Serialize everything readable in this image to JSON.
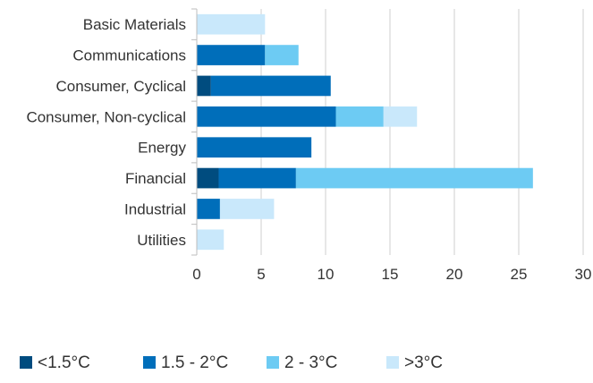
{
  "chart_data": {
    "type": "bar",
    "orientation": "horizontal",
    "stacked": true,
    "categories": [
      "Basic Materials",
      "Communications",
      "Consumer, Cyclical",
      "Consumer, Non-cyclical",
      "Energy",
      "Financial",
      "Industrial",
      "Utilities"
    ],
    "series": [
      {
        "name": "<1.5°C",
        "color": "#004C7F",
        "values": [
          0,
          0,
          1.1,
          0,
          0,
          1.7,
          0,
          0
        ]
      },
      {
        "name": "1.5 - 2°C",
        "color": "#006EBA",
        "values": [
          0,
          5.3,
          9.3,
          10.8,
          8.9,
          6.0,
          1.8,
          0
        ]
      },
      {
        "name": "2 - 3°C",
        "color": "#6DCBF3",
        "values": [
          0,
          2.6,
          0,
          3.7,
          0,
          18.4,
          0,
          0
        ]
      },
      {
        "name": ">3°C",
        "color": "#C9E8FB",
        "values": [
          5.3,
          0,
          0,
          2.6,
          0,
          0,
          4.2,
          2.1
        ]
      }
    ],
    "xlim": [
      0,
      30
    ],
    "x_ticks": [
      "0",
      "5",
      "10",
      "15",
      "20",
      "25",
      "30"
    ],
    "grid": "vertical",
    "legend_position": "bottom-left",
    "title": "",
    "xlabel": "",
    "ylabel": ""
  }
}
